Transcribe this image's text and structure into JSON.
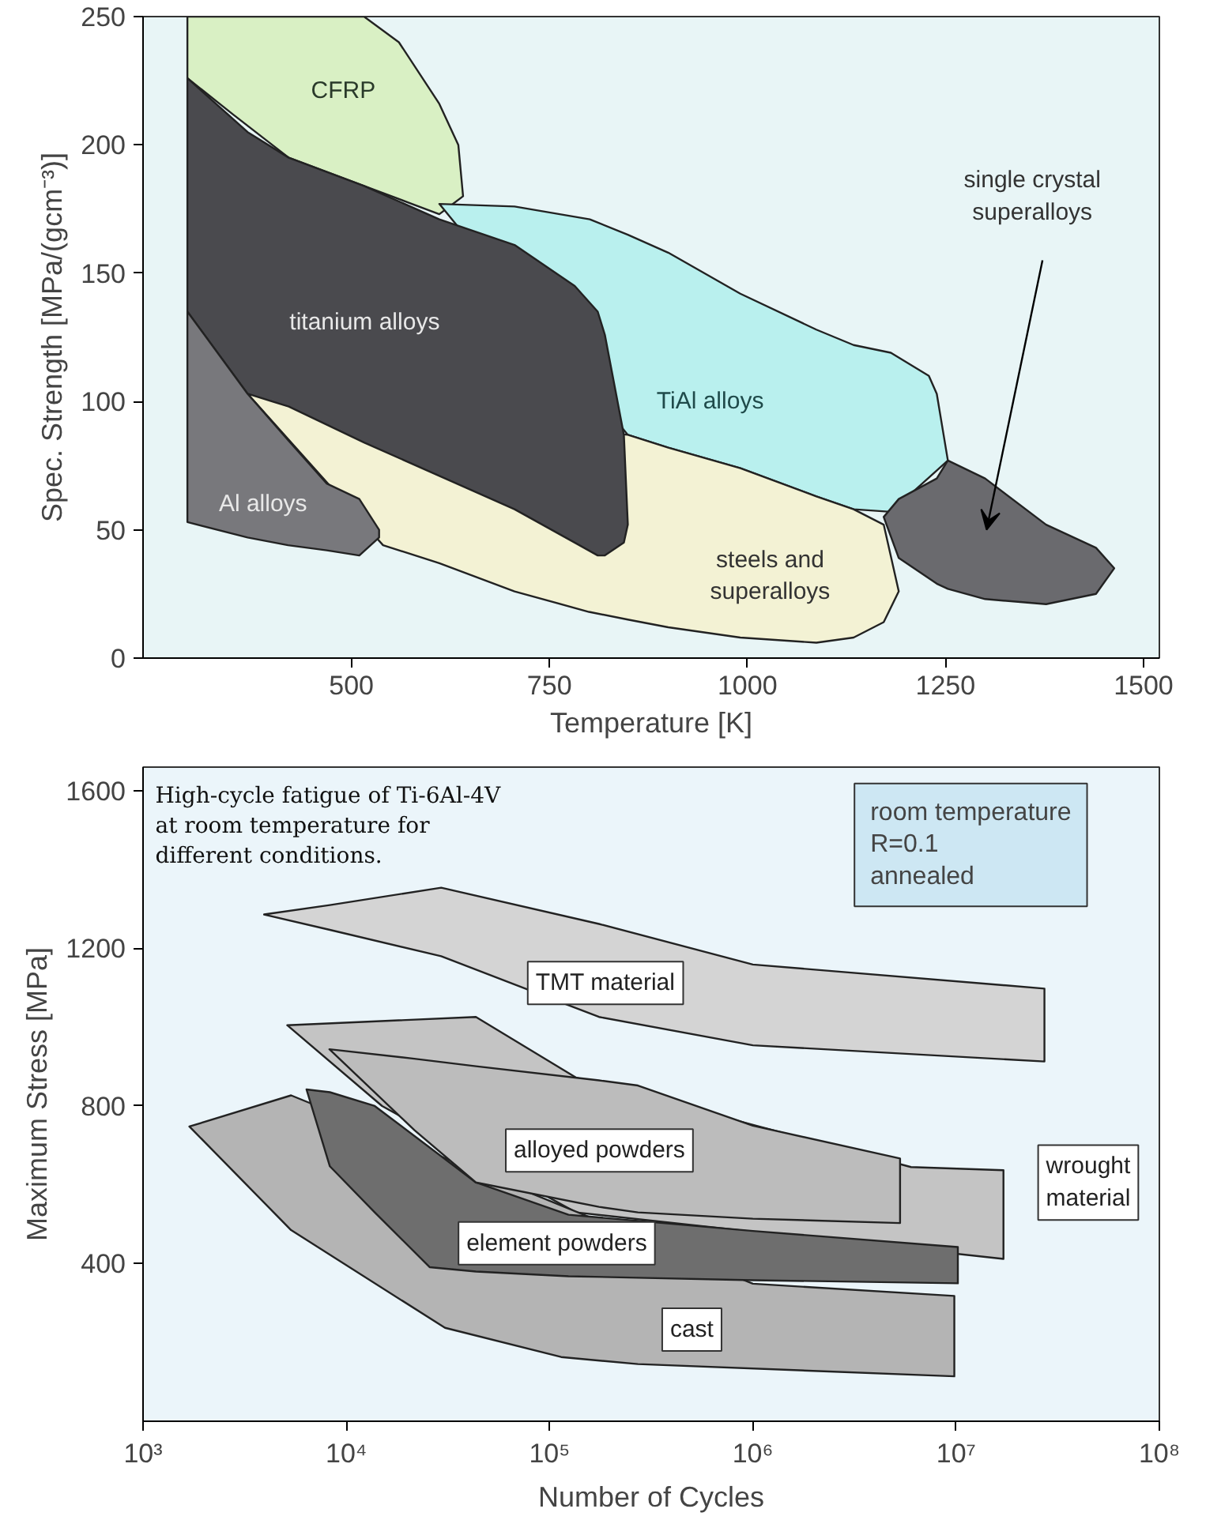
{
  "chart_data": [
    {
      "type": "area",
      "xlabel": "Temperature [K]",
      "ylabel": "Spec. Strength [MPa/(gcm⁻³)]",
      "xlim": [
        237,
        1520
      ],
      "ylim": [
        0,
        250
      ],
      "xticks": [
        500,
        750,
        1000,
        1250,
        1500
      ],
      "yticks": [
        0,
        50,
        100,
        150,
        200,
        250
      ],
      "grid": false,
      "series": [
        {
          "color": "#d9f0c4",
          "x": [
            293,
            350,
            421,
            516,
            560,
            611,
            635,
            641,
            611,
            516,
            421,
            350,
            293
          ],
          "values": [
            250,
            250,
            250,
            250,
            240,
            216,
            200,
            180,
            173,
            184,
            195,
            212,
            226
          ]
        },
        {
          "color": "#b9f0ee",
          "x": [
            611,
            706,
            801,
            849,
            900,
            991,
            1087,
            1134,
            1181,
            1229,
            1239,
            1253,
            1181,
            1134,
            1087,
            991,
            900,
            849
          ],
          "values": [
            177,
            176,
            171,
            165,
            158,
            142,
            128,
            122,
            119,
            110,
            103,
            77,
            57,
            58,
            63,
            74,
            82,
            87
          ]
        },
        {
          "color": "#f3f2d4",
          "x": [
            369,
            849,
            900,
            991,
            1087,
            1134,
            1172,
            1191,
            1172,
            1134,
            1087,
            991,
            900,
            849,
            800,
            706,
            611,
            540
          ],
          "values": [
            103,
            87,
            82,
            74,
            63,
            58,
            52,
            26,
            14,
            8,
            6,
            8,
            12,
            15,
            18,
            26,
            37,
            44
          ]
        },
        {
          "color": "#4a4a4e",
          "x": [
            293,
            369,
            421,
            516,
            611,
            706,
            782,
            811,
            820,
            844,
            849,
            844,
            820,
            811,
            782,
            706,
            611,
            516,
            421,
            369,
            293
          ],
          "values": [
            226,
            205,
            195,
            184,
            171,
            161,
            145,
            135,
            126,
            87,
            52,
            45,
            40,
            40,
            45,
            58,
            71,
            84,
            98,
            103,
            135
          ]
        },
        {
          "color": "#78787c",
          "x": [
            293,
            369,
            420,
            469,
            510,
            535,
            535,
            510,
            469,
            420,
            369,
            293
          ],
          "values": [
            135,
            103,
            85,
            68,
            62,
            50,
            47,
            40,
            42,
            44,
            47,
            53
          ]
        },
        {
          "color": "#6a6a6e",
          "x": [
            1172,
            1191,
            1239,
            1253,
            1300,
            1377,
            1440,
            1463,
            1440,
            1377,
            1300,
            1253,
            1239,
            1191
          ],
          "values": [
            55,
            62,
            70,
            77,
            70,
            52,
            43,
            35,
            25,
            21,
            23,
            27,
            29,
            39
          ]
        }
      ],
      "annotations": [
        "CFRP",
        "titanium alloys",
        "TiAl alloys",
        "Al alloys",
        "steels and\nsuperalloys",
        "single crystal\nsuperalloys"
      ]
    },
    {
      "type": "area",
      "xlabel": "Number of Cycles",
      "ylabel": "Maximum Stress [MPa]",
      "log": "x",
      "xlim": [
        1000,
        100000000
      ],
      "ylim": [
        0,
        1660
      ],
      "xticks": [
        {
          "value": 1000,
          "label": "10³"
        },
        {
          "value": 10000,
          "label": "10⁴"
        },
        {
          "value": 100000,
          "label": "10⁵"
        },
        {
          "value": 1000000,
          "label": "10⁶"
        },
        {
          "value": 10000000,
          "label": "10⁷"
        },
        {
          "value": 100000000,
          "label": "10⁸"
        }
      ],
      "yticks": [
        400,
        800,
        1200,
        1600
      ],
      "grid": false,
      "series": [
        {
          "color": "#d4d4d4",
          "x": [
            3940,
            8300,
            29300,
            175000,
            1000000,
            27200000,
            27200000,
            1000000,
            175000,
            29300,
            8300
          ],
          "values": [
            1286,
            1310,
            1354,
            1262,
            1159,
            1098,
            913,
            954,
            1026,
            1180,
            1247
          ]
        },
        {
          "color": "#c4c4c4",
          "x": [
            5120,
            43400,
            135000,
            6000000,
            17100000,
            17100000,
            135000,
            15000
          ],
          "values": [
            1005,
            1026,
            872,
            645,
            637,
            412,
            530,
            800
          ]
        },
        {
          "color": "#b4b4b4",
          "x": [
            1690,
            5350,
            1000000,
            9800000,
            9800000,
            272000,
            114000,
            30600,
            5350
          ],
          "values": [
            748,
            827,
            349,
            318,
            114,
            145,
            163,
            237,
            485
          ]
        },
        {
          "color": "#6e6e6e",
          "x": [
            6370,
            8300,
            13800,
            43400,
            124000,
            1000000,
            10200000,
            10200000,
            1000000,
            124000,
            43400,
            25700,
            13800,
            8300
          ],
          "values": [
            842,
            835,
            800,
            606,
            524,
            483,
            442,
            350,
            358,
            368,
            380,
            391,
            530,
            647
          ]
        },
        {
          "color": "#bcbcbc",
          "x": [
            8260,
            21600,
            43400,
            175000,
            272000,
            1000000,
            5300000,
            5300000,
            1000000,
            272000,
            175000,
            43400,
            21600
          ],
          "values": [
            944,
            920,
            901,
            865,
            852,
            750,
            667,
            503,
            514,
            530,
            544,
            606,
            739
          ]
        }
      ],
      "annotations": [
        "High-cycle fatigue of Ti-6Al-4V\nat room temperature for\ndifferent conditions.",
        "room temperature\nR=0.1\nannealed",
        "TMT material",
        "alloyed powders",
        "wrought\nmaterial",
        "element powders",
        "cast"
      ]
    }
  ]
}
